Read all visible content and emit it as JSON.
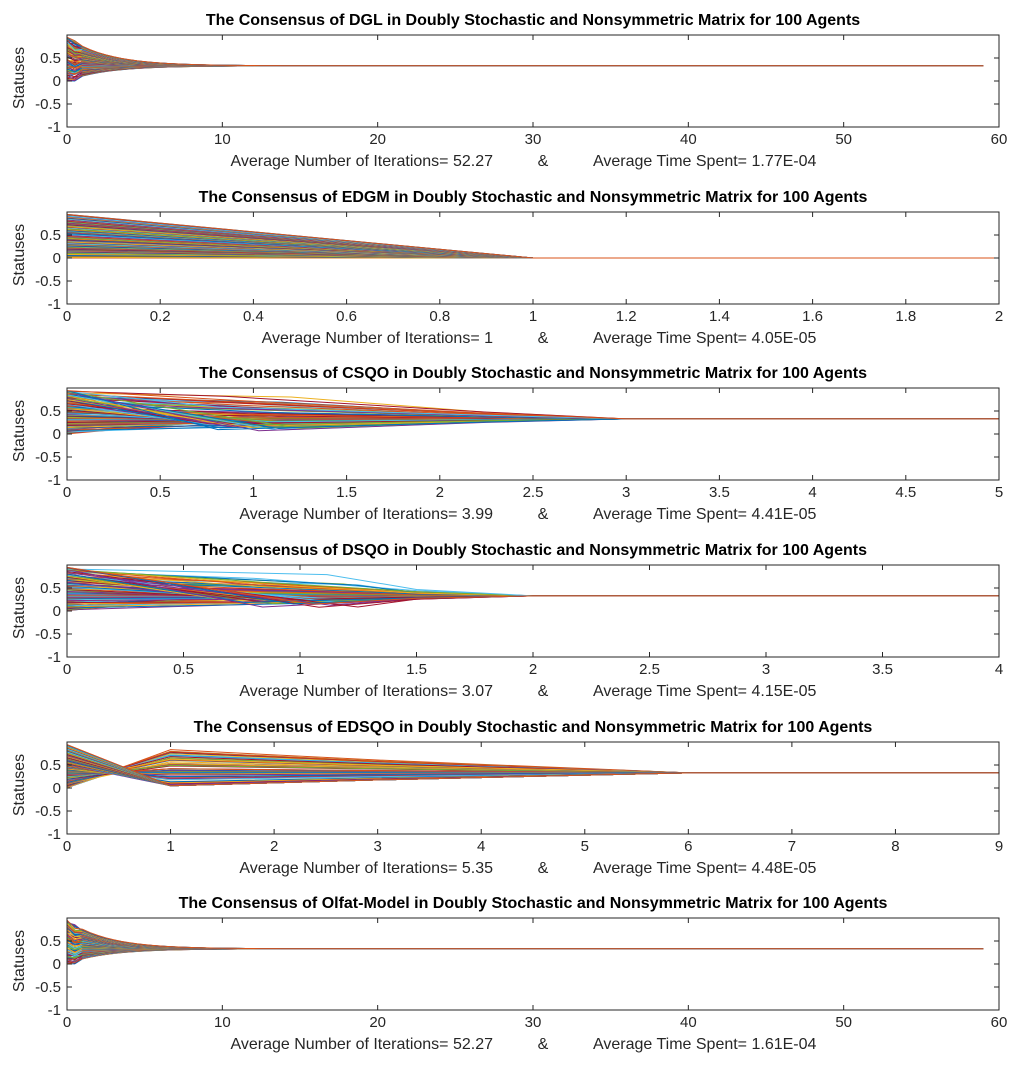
{
  "palette": [
    "#0072bd",
    "#d95319",
    "#edb120",
    "#7e2f8e",
    "#77ac30",
    "#4dbeee",
    "#a2142f"
  ],
  "chart_data": [
    {
      "type": "line",
      "title": "The Consensus of DGL in Doubly Stochastic and Nonsymmetric Matrix for 100 Agents",
      "ylabel": "Statuses",
      "xlabel_parts": [
        "Average Number of Iterations= 52.27",
        "&",
        "Average Time Spent= 1.77E-04"
      ],
      "xlim": [
        0,
        60
      ],
      "ylim": [
        -1,
        1
      ],
      "xticks": [
        0,
        10,
        20,
        30,
        40,
        50,
        60
      ],
      "xtick_labels": [
        "0",
        "10",
        "20",
        "30",
        "40",
        "50",
        "60"
      ],
      "yticks": [
        -1,
        -0.5,
        0,
        0.5
      ],
      "ytick_labels": [
        "-1",
        "-0.5",
        "0",
        "0.5"
      ],
      "series_count": 100,
      "initial_range": [
        0.0,
        0.95
      ],
      "consensus_value": 0.33,
      "converge_x": 15,
      "end_x": 59,
      "decay": "exponential"
    },
    {
      "type": "line",
      "title": "The Consensus of EDGM in Doubly Stochastic and Nonsymmetric Matrix for 100 Agents",
      "ylabel": "Statuses",
      "xlabel_parts": [
        "Average Number of Iterations= 1",
        "&",
        "Average Time Spent= 4.05E-05"
      ],
      "xlim": [
        0,
        2
      ],
      "ylim": [
        -1,
        1
      ],
      "xticks": [
        0,
        0.2,
        0.4,
        0.6,
        0.8,
        1,
        1.2,
        1.4,
        1.6,
        1.8,
        2
      ],
      "xtick_labels": [
        "0",
        "0.2",
        "0.4",
        "0.6",
        "0.8",
        "1",
        "1.2",
        "1.4",
        "1.6",
        "1.8",
        "2"
      ],
      "yticks": [
        -1,
        -0.5,
        0,
        0.5
      ],
      "ytick_labels": [
        "-1",
        "-0.5",
        "0",
        "0.5"
      ],
      "series_count": 100,
      "initial_range": [
        0.0,
        0.95
      ],
      "consensus_value": 0.0,
      "converge_x": 1,
      "end_x": 2,
      "decay": "linear"
    },
    {
      "type": "line",
      "title": "The Consensus of CSQO in Doubly Stochastic and Nonsymmetric Matrix for 100 Agents",
      "ylabel": "Statuses",
      "xlabel_parts": [
        "Average Number of Iterations= 3.99",
        "&",
        "Average Time Spent= 4.41E-05"
      ],
      "xlim": [
        0,
        5
      ],
      "ylim": [
        -1,
        1
      ],
      "xticks": [
        0,
        0.5,
        1,
        1.5,
        2,
        2.5,
        3,
        3.5,
        4,
        4.5,
        5
      ],
      "xtick_labels": [
        "0",
        "0.5",
        "1",
        "1.5",
        "2",
        "2.5",
        "3",
        "3.5",
        "4",
        "4.5",
        "5"
      ],
      "yticks": [
        -1,
        -0.5,
        0,
        0.5
      ],
      "ytick_labels": [
        "-1",
        "-0.5",
        "0",
        "0.5"
      ],
      "series_count": 100,
      "initial_range": [
        0.0,
        0.95
      ],
      "consensus_value": 0.33,
      "converge_x": 3,
      "end_x": 5,
      "decay": "kink"
    },
    {
      "type": "line",
      "title": "The Consensus of DSQO in Doubly Stochastic and Nonsymmetric Matrix for 100 Agents",
      "ylabel": "Statuses",
      "xlabel_parts": [
        "Average Number of Iterations= 3.07",
        "&",
        "Average Time Spent= 4.15E-05"
      ],
      "xlim": [
        0,
        4
      ],
      "ylim": [
        -1,
        1
      ],
      "xticks": [
        0,
        0.5,
        1,
        1.5,
        2,
        2.5,
        3,
        3.5,
        4
      ],
      "xtick_labels": [
        "0",
        "0.5",
        "1",
        "1.5",
        "2",
        "2.5",
        "3",
        "3.5",
        "4"
      ],
      "yticks": [
        -1,
        -0.5,
        0,
        0.5
      ],
      "ytick_labels": [
        "-1",
        "-0.5",
        "0",
        "0.5"
      ],
      "series_count": 100,
      "initial_range": [
        0.0,
        0.95
      ],
      "consensus_value": 0.33,
      "converge_x": 2,
      "end_x": 4,
      "decay": "kink"
    },
    {
      "type": "line",
      "title": "The Consensus of EDSQO in Doubly Stochastic and Nonsymmetric Matrix for 100 Agents",
      "ylabel": "Statuses",
      "xlabel_parts": [
        "Average Number of Iterations= 5.35",
        "&",
        "Average Time Spent= 4.48E-05"
      ],
      "xlim": [
        0,
        9
      ],
      "ylim": [
        -1,
        1
      ],
      "xticks": [
        0,
        1,
        2,
        3,
        4,
        5,
        6,
        7,
        8,
        9
      ],
      "xtick_labels": [
        "0",
        "1",
        "2",
        "3",
        "4",
        "5",
        "6",
        "7",
        "8",
        "9"
      ],
      "yticks": [
        -1,
        -0.5,
        0,
        0.5
      ],
      "ytick_labels": [
        "-1",
        "-0.5",
        "0",
        "0.5"
      ],
      "series_count": 100,
      "initial_range": [
        0.0,
        0.95
      ],
      "consensus_value": 0.33,
      "converge_x": 6,
      "end_x": 9,
      "decay": "swap"
    },
    {
      "type": "line",
      "title": "The Consensus of Olfat-Model in Doubly Stochastic and Nonsymmetric Matrix for 100 Agents",
      "ylabel": "Statuses",
      "xlabel_parts": [
        "Average Number of Iterations= 52.27",
        "&",
        "Average Time Spent= 1.61E-04"
      ],
      "xlim": [
        0,
        60
      ],
      "ylim": [
        -1,
        1
      ],
      "xticks": [
        0,
        10,
        20,
        30,
        40,
        50,
        60
      ],
      "xtick_labels": [
        "0",
        "10",
        "20",
        "30",
        "40",
        "50",
        "60"
      ],
      "yticks": [
        -1,
        -0.5,
        0,
        0.5
      ],
      "ytick_labels": [
        "-1",
        "-0.5",
        "0",
        "0.5"
      ],
      "series_count": 100,
      "initial_range": [
        0.0,
        0.95
      ],
      "consensus_value": 0.33,
      "converge_x": 15,
      "end_x": 59,
      "decay": "exponential"
    }
  ]
}
